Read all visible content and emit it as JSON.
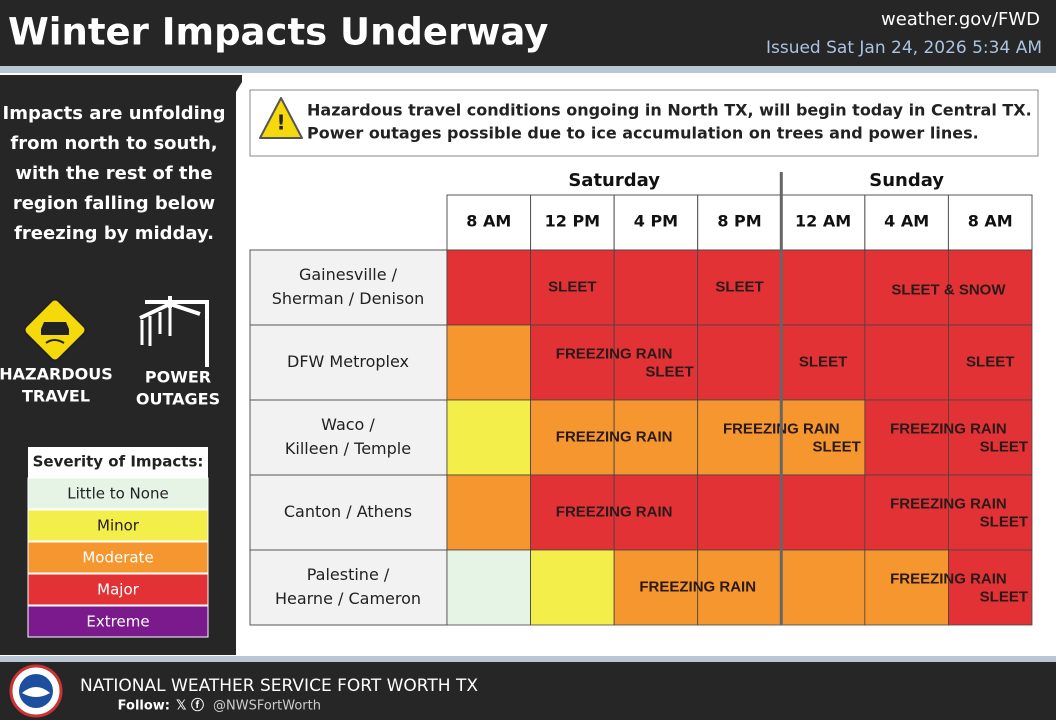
{
  "header": {
    "title": "Winter Impacts Underway",
    "site": "weather.gov/FWD",
    "issued": "Issued Sat Jan 24, 2026 5:34 AM"
  },
  "sidebar": {
    "summary": [
      "Impacts are unfolding",
      "from north to south,",
      "with the rest of the",
      "region falling below",
      "freezing by midday."
    ],
    "icons": [
      [
        "HAZARDOUS",
        "TRAVEL"
      ],
      [
        "POWER",
        "OUTAGES"
      ]
    ],
    "legend_title": "Severity of Impacts:",
    "levels": [
      {
        "name": "Little to None",
        "color": "#e6f4e6",
        "text": "#222"
      },
      {
        "name": "Minor",
        "color": "#f4ee4a",
        "text": "#222"
      },
      {
        "name": "Moderate",
        "color": "#f5962e",
        "text": "#fff"
      },
      {
        "name": "Major",
        "color": "#e23236",
        "text": "#fff"
      },
      {
        "name": "Extreme",
        "color": "#7a1a8c",
        "text": "#fff"
      }
    ]
  },
  "alert": [
    "Hazardous travel conditions ongoing in North TX, will begin today in Central TX.",
    "Power outages possible due to ice accumulation on trees and power lines."
  ],
  "table": {
    "days": [
      {
        "name": "Saturday",
        "span": 4
      },
      {
        "name": "Sunday",
        "span": 3
      }
    ],
    "times": [
      "8 AM",
      "12 PM",
      "4 PM",
      "8 PM",
      "12 AM",
      "4 AM",
      "8 AM"
    ],
    "rows": [
      {
        "location": [
          "Gainesville /",
          "Sherman / Denison"
        ],
        "levels": [
          3,
          3,
          3,
          3,
          3,
          3,
          3
        ],
        "labels": [
          {
            "start": 1,
            "span": 1,
            "lines": [
              "SLEET"
            ]
          },
          {
            "start": 3,
            "span": 1,
            "lines": [
              "SLEET"
            ]
          },
          {
            "start": 5,
            "span": 2,
            "lines": [
              "SLEET & SNOW"
            ]
          }
        ]
      },
      {
        "location": [
          "DFW Metroplex"
        ],
        "levels": [
          2,
          3,
          3,
          3,
          3,
          3,
          3
        ],
        "labels": [
          {
            "start": 1,
            "span": 2,
            "lines": [
              "FREEZING RAIN",
              "SLEET"
            ]
          },
          {
            "start": 4,
            "span": 1,
            "lines": [
              "SLEET"
            ]
          },
          {
            "start": 6,
            "span": 1,
            "lines": [
              "SLEET"
            ]
          }
        ]
      },
      {
        "location": [
          "Waco /",
          "Killeen / Temple"
        ],
        "levels": [
          1,
          2,
          2,
          2,
          2,
          3,
          3
        ],
        "labels": [
          {
            "start": 1,
            "span": 2,
            "lines": [
              "FREEZING RAIN"
            ]
          },
          {
            "start": 3,
            "span": 2,
            "lines": [
              "FREEZING RAIN",
              "SLEET"
            ]
          },
          {
            "start": 5,
            "span": 2,
            "lines": [
              "FREEZING RAIN",
              "SLEET"
            ]
          }
        ]
      },
      {
        "location": [
          "Canton / Athens"
        ],
        "levels": [
          2,
          3,
          3,
          3,
          3,
          3,
          3
        ],
        "labels": [
          {
            "start": 1,
            "span": 2,
            "lines": [
              "FREEZING RAIN"
            ]
          },
          {
            "start": 5,
            "span": 2,
            "lines": [
              "FREEZING RAIN",
              "SLEET"
            ]
          }
        ]
      },
      {
        "location": [
          "Palestine /",
          "Hearne / Cameron"
        ],
        "levels": [
          0,
          1,
          2,
          2,
          2,
          2,
          3
        ],
        "labels": [
          {
            "start": 2,
            "span": 2,
            "lines": [
              "FREEZING RAIN"
            ]
          },
          {
            "start": 5,
            "span": 2,
            "lines": [
              "FREEZING RAIN",
              "SLEET"
            ]
          }
        ]
      }
    ]
  },
  "footer": {
    "office": "NATIONAL WEATHER SERVICE FORT WORTH TX",
    "follow": "Follow:",
    "handle": "@NWSFortWorth"
  }
}
